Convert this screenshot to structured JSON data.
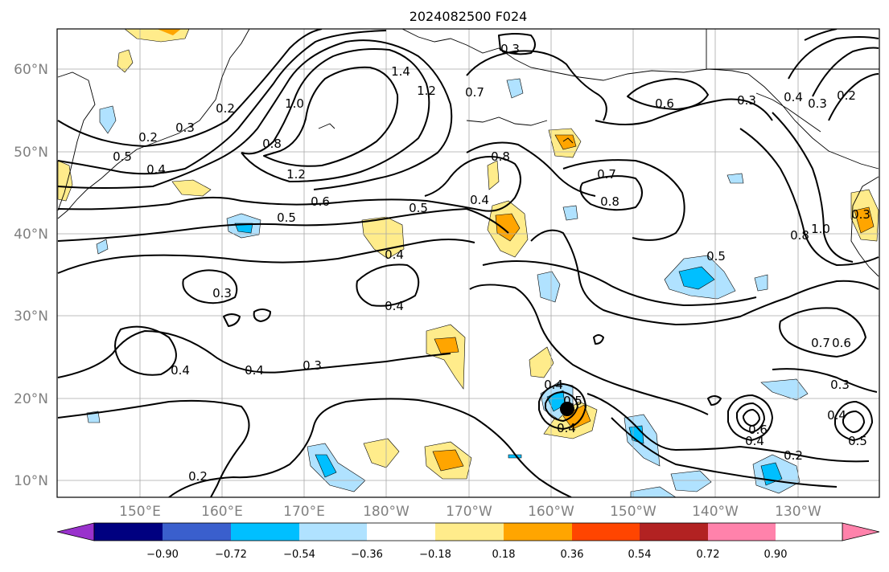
{
  "map": {
    "title": "2024082500 F024",
    "lat_labels": [
      "60°N",
      "50°N",
      "40°N",
      "30°N",
      "20°N",
      "10°N"
    ],
    "lon_labels": [
      "150°E",
      "160°E",
      "170°E",
      "180°W",
      "170°W",
      "160°W",
      "150°W",
      "140°W",
      "130°W"
    ],
    "contour_labels": [
      "0.2",
      "0.3",
      "0.2",
      "0.5",
      "0.4",
      "0.5",
      "0.6",
      "0.8",
      "1.0",
      "1.2",
      "1.4",
      "1.2",
      "0.7",
      "0.6",
      "0.3",
      "0.4",
      "0.3",
      "0.2",
      "0.5",
      "0.4",
      "0.8",
      "0.7",
      "0.8",
      "0.5",
      "0.8",
      "1.0",
      "0.3",
      "0.4",
      "0.4",
      "0.3",
      "0.4",
      "0.4",
      "0.3",
      "0.4",
      "0.5",
      "0.2",
      "0.6",
      "0.4",
      "0.3",
      "0.4",
      "0.5",
      "0.2",
      "0.7",
      "0.6",
      "0.4",
      "0.3"
    ],
    "marker": "black-dot"
  },
  "colorbar": {
    "ticks": [
      "−0.90",
      "−0.72",
      "−0.54",
      "−0.36",
      "−0.18",
      "0.18",
      "0.36",
      "0.54",
      "0.72",
      "0.90"
    ],
    "colors": [
      "#9932CC",
      "#000080",
      "#3A5FCD",
      "#00BFFF",
      "#B0E2FF",
      "#FFFFFF",
      "#FFEC8B",
      "#FFA500",
      "#FF4500",
      "#B22222",
      "#FF82AB"
    ]
  }
}
